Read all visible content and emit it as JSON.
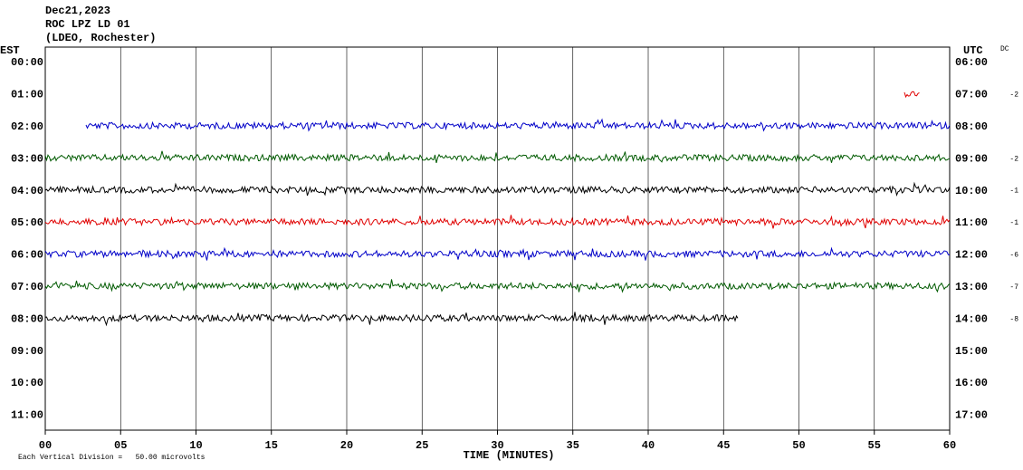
{
  "chart_data": {
    "type": "helicorder",
    "title_lines": [
      "Dec21,2023",
      "ROC LPZ LD 01",
      "(LDEO, Rochester)"
    ],
    "left_axis_label": "EST",
    "right_axis_label": "UTC",
    "dc_label": "DC",
    "x_label": "TIME (MINUTES)",
    "footnote": "Each Vertical Division =   50.00 microvolts",
    "xlim": [
      0,
      60
    ],
    "xticks": [
      {
        "value": 0,
        "label": "00"
      },
      {
        "value": 5,
        "label": "05"
      },
      10,
      15,
      20,
      25,
      30,
      35,
      40,
      45,
      50,
      55,
      60
    ],
    "grid": true,
    "rows": [
      {
        "est": "00:00",
        "utc": "06:00",
        "dc": null
      },
      {
        "est": "01:00",
        "utc": "07:00",
        "dc": -2
      },
      {
        "est": "02:00",
        "utc": "08:00",
        "dc": null
      },
      {
        "est": "03:00",
        "utc": "09:00",
        "dc": -2
      },
      {
        "est": "04:00",
        "utc": "10:00",
        "dc": -1
      },
      {
        "est": "05:00",
        "utc": "11:00",
        "dc": -1
      },
      {
        "est": "06:00",
        "utc": "12:00",
        "dc": -6
      },
      {
        "est": "07:00",
        "utc": "13:00",
        "dc": -7
      },
      {
        "est": "08:00",
        "utc": "14:00",
        "dc": -8
      },
      {
        "est": "09:00",
        "utc": "15:00",
        "dc": null
      },
      {
        "est": "10:00",
        "utc": "16:00",
        "dc": null
      },
      {
        "est": "11:00",
        "utc": "17:00",
        "dc": null
      }
    ],
    "traces": [
      {
        "row": 1,
        "color": "#e00000",
        "start": 57.0,
        "end": 58.0
      },
      {
        "row": 2,
        "color": "#0000c8",
        "start": 2.7,
        "end": 60
      },
      {
        "row": 3,
        "color": "#005a00",
        "start": 0,
        "end": 60
      },
      {
        "row": 4,
        "color": "#000000",
        "start": 0,
        "end": 60
      },
      {
        "row": 5,
        "color": "#e00000",
        "start": 0,
        "end": 60
      },
      {
        "row": 6,
        "color": "#0000c8",
        "start": 0,
        "end": 60
      },
      {
        "row": 7,
        "color": "#005a00",
        "start": 0,
        "end": 60
      },
      {
        "row": 8,
        "color": "#000000",
        "start": 0,
        "end": 46
      }
    ]
  }
}
